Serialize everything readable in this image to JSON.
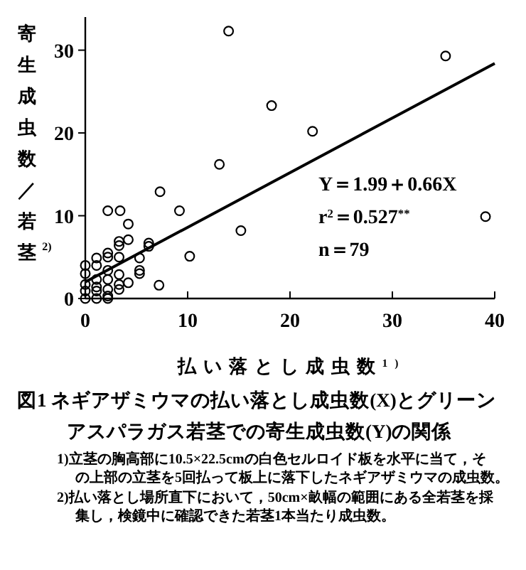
{
  "chart_data": {
    "type": "scatter",
    "title": "図1 ネギアザミウマの払い落とし成虫数(X)とグリーンアスパラガス若茎での寄生成虫数(Y)の関係",
    "xlabel": "払い落とし成虫数$^{1)}$",
    "ylabel": "寄生成虫数／若茎$^{2)}$",
    "xlim": [
      0,
      40
    ],
    "ylim": [
      0,
      34
    ],
    "xticks": [
      0,
      10,
      20,
      30,
      40
    ],
    "yticks": [
      0,
      10,
      20,
      30
    ],
    "marker": "circle",
    "grid": false,
    "series": [
      {
        "type": "scatter",
        "color": "#000000",
        "x": [
          14.0,
          35.2,
          18.2,
          22.2,
          13.1,
          7.3,
          9.2,
          39.1,
          15.2,
          10.2,
          7.2,
          2.2,
          3.4,
          4.2,
          3.3,
          3.3,
          4.2,
          6.2,
          6.2,
          3.3,
          5.3,
          5.3,
          5.3,
          4.2,
          3.3,
          3.3,
          3.3,
          2.2,
          2.2,
          2.2,
          2.2,
          2.2,
          2.2,
          0,
          0,
          0,
          0,
          0,
          1.1,
          1.1,
          1.1,
          1.1,
          1.1,
          1.1,
          2.2
        ],
        "values": [
          32.3,
          29.3,
          23.3,
          20.2,
          16.2,
          12.9,
          10.6,
          9.9,
          8.2,
          5.1,
          1.6,
          10.6,
          10.6,
          9.0,
          6.9,
          6.4,
          7.1,
          6.7,
          6.3,
          5.0,
          4.9,
          3.4,
          3.0,
          1.9,
          2.9,
          1.7,
          1.1,
          5.5,
          5.0,
          3.4,
          2.3,
          1.1,
          0,
          4.0,
          3.0,
          1.7,
          0.9,
          0,
          4.9,
          4.0,
          2.3,
          1.4,
          0.9,
          0,
          0.3
        ]
      },
      {
        "type": "line",
        "color": "#000000",
        "line_style": "solid",
        "marker": "none",
        "x": [
          0,
          40
        ],
        "values": [
          2.0,
          28.4
        ]
      }
    ],
    "annotations": [
      "Y＝1.99＋0.66X",
      "r$^{2}$＝0.527$^{**}$",
      "n＝79",
      "1)立茎の胸高部に10.5×22.5cmの白色セルロイド板を水平に当て，その上部の立茎を5回払って板上に落下したネギアザミウマの成虫数。",
      "2)払い落とし場所直下において，50cm×畝幅の範囲にある全若茎を採集し，検鏡中に確認できた若茎1本当たり成虫数。"
    ]
  }
}
